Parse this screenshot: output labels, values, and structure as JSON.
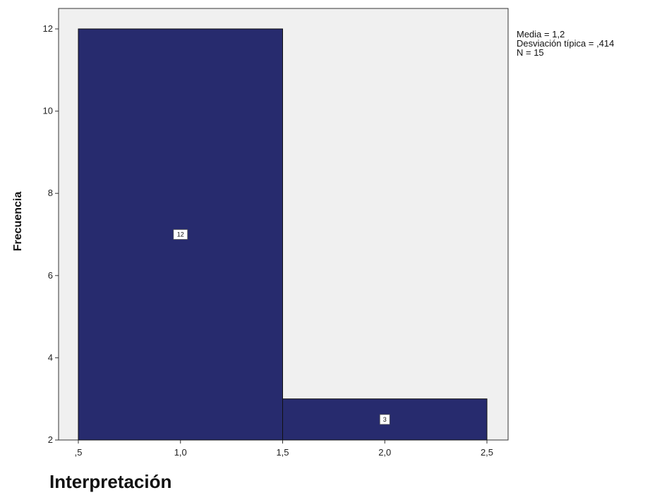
{
  "chart_data": {
    "type": "bar",
    "subtype": "histogram",
    "bins": [
      {
        "x0": 0.5,
        "x1": 1.5,
        "value": 12,
        "label": "12"
      },
      {
        "x0": 1.5,
        "x1": 2.5,
        "value": 3,
        "label": "3"
      }
    ],
    "xlim": [
      0.5,
      2.5
    ],
    "ylim": [
      2,
      12.6
    ],
    "xticks": [
      {
        "value": 0.5,
        "label": ",5"
      },
      {
        "value": 1.0,
        "label": "1,0"
      },
      {
        "value": 1.5,
        "label": "1,5"
      },
      {
        "value": 2.0,
        "label": "2,0"
      },
      {
        "value": 2.5,
        "label": "2,5"
      }
    ],
    "yticks": [
      {
        "value": 2,
        "label": "2"
      },
      {
        "value": 4,
        "label": "4"
      },
      {
        "value": 6,
        "label": "6"
      },
      {
        "value": 8,
        "label": "8"
      },
      {
        "value": 10,
        "label": "10"
      },
      {
        "value": 12,
        "label": "12"
      }
    ],
    "xlabel": "Interpretación",
    "ylabel": "Frecuencia",
    "stats": {
      "mean": "Media = 1,2",
      "std": "Desviación típica = ,414",
      "n": "N = 15"
    },
    "colors": {
      "bar_fill": "#272b6e",
      "plot_background": "#f0f0f0",
      "frame": "#333333"
    },
    "grid": false
  }
}
